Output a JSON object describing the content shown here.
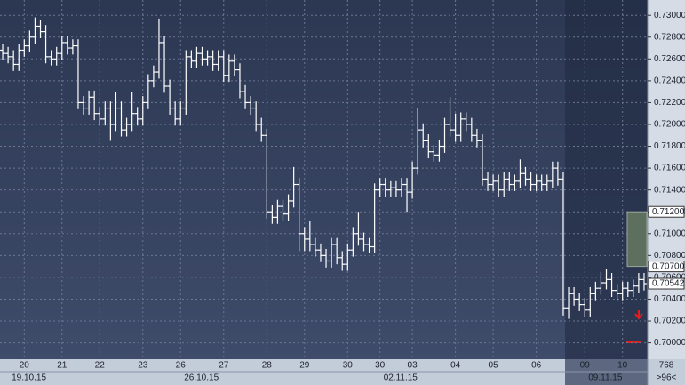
{
  "chart_data": {
    "type": "ohlc",
    "categories": [
      null,
      null,
      null,
      null,
      "20",
      null,
      null,
      null,
      null,
      null,
      null,
      "21",
      null,
      null,
      null,
      null,
      null,
      null,
      "22",
      null,
      null,
      null,
      null,
      null,
      null,
      null,
      "23",
      null,
      null,
      null,
      null,
      null,
      null,
      "26",
      null,
      null,
      null,
      null,
      null,
      null,
      null,
      "27",
      null,
      null,
      null,
      null,
      null,
      null,
      null,
      "28",
      null,
      null,
      null,
      null,
      null,
      null,
      "29",
      null,
      null,
      null,
      null,
      null,
      null,
      null,
      "30",
      null,
      null,
      null,
      null,
      null,
      "30",
      null,
      null,
      null,
      null,
      null,
      "03",
      null,
      null,
      null,
      null,
      null,
      null,
      null,
      "04",
      null,
      null,
      null,
      null,
      null,
      null,
      "05",
      null,
      null,
      null,
      null,
      null,
      null,
      null,
      "06",
      null,
      null,
      null,
      null,
      null,
      null,
      null,
      null,
      "09",
      null,
      null,
      null,
      null,
      null,
      null,
      "10",
      null,
      null,
      null,
      null
    ],
    "dates": [
      null,
      "19.10.15",
      null,
      null,
      null,
      null,
      null,
      null,
      null,
      null,
      null,
      null,
      null,
      null,
      null,
      null,
      null,
      null,
      null,
      null,
      null,
      null,
      null,
      null,
      null,
      null,
      null,
      null,
      null,
      null,
      null,
      null,
      null,
      "26.10.15",
      null,
      null,
      null,
      null,
      null,
      null,
      null,
      null,
      null,
      null,
      null,
      null,
      null,
      null,
      null,
      null,
      null,
      null,
      null,
      null,
      null,
      null,
      null,
      null,
      null,
      null,
      null,
      null,
      null,
      null,
      null,
      null,
      null,
      null,
      null,
      null,
      "02.11.15",
      null,
      null,
      null,
      null,
      null,
      null,
      null,
      null,
      null,
      null,
      null,
      null,
      null,
      null,
      null,
      null,
      null,
      null,
      null,
      null,
      null,
      null,
      null,
      null,
      null,
      null,
      null,
      null,
      null,
      null,
      null,
      null,
      null,
      null,
      null,
      null,
      null,
      "09.11.15",
      null,
      null,
      null,
      null,
      null,
      null,
      null,
      null,
      null,
      null,
      null
    ],
    "open": [
      0.7268,
      0.7265,
      0.7262,
      0.7255,
      0.7268,
      0.7272,
      0.728,
      0.729,
      0.7285,
      0.7262,
      0.726,
      0.7265,
      0.7275,
      0.727,
      0.7272,
      0.722,
      0.7215,
      0.7225,
      0.721,
      0.7205,
      0.7215,
      0.72,
      0.7215,
      0.7195,
      0.72,
      0.721,
      0.7205,
      0.722,
      0.724,
      0.7248,
      0.7275,
      0.7235,
      0.7215,
      0.7205,
      0.7215,
      0.7262,
      0.7258,
      0.7265,
      0.726,
      0.7262,
      0.7255,
      0.7262,
      0.7245,
      0.7258,
      0.725,
      0.723,
      0.722,
      0.7215,
      0.72,
      0.719,
      0.712,
      0.7115,
      0.7125,
      0.7118,
      0.713,
      0.7145,
      0.71,
      0.7095,
      0.709,
      0.7085,
      0.708,
      0.7075,
      0.709,
      0.7078,
      0.7072,
      0.7085,
      0.71,
      0.7095,
      0.709,
      0.7088,
      0.714,
      0.7145,
      0.714,
      0.7142,
      0.714,
      0.7145,
      0.7138,
      0.716,
      0.7195,
      0.7185,
      0.7175,
      0.7172,
      0.718,
      0.72,
      0.7195,
      0.719,
      0.7205,
      0.72,
      0.719,
      0.7185,
      0.715,
      0.7145,
      0.7148,
      0.714,
      0.715,
      0.7145,
      0.7148,
      0.7155,
      0.715,
      0.7145,
      0.7148,
      0.7145,
      0.7148,
      0.716,
      0.715,
      0.7032,
      0.7045,
      0.704,
      0.7035,
      0.703,
      0.7045,
      0.705,
      0.7055,
      0.7058,
      0.7048,
      0.7045,
      0.705,
      0.7048,
      0.7052,
      0.7058
    ],
    "high": [
      0.7274,
      0.7271,
      0.7268,
      0.7274,
      0.7278,
      0.7286,
      0.7298,
      0.7296,
      0.7291,
      0.7268,
      0.7271,
      0.7281,
      0.7281,
      0.7278,
      0.7278,
      0.7226,
      0.7231,
      0.7231,
      0.7216,
      0.7221,
      0.7221,
      0.723,
      0.7221,
      0.7206,
      0.723,
      0.7216,
      0.7226,
      0.7246,
      0.7254,
      0.7297,
      0.7281,
      0.7241,
      0.7221,
      0.7221,
      0.7268,
      0.7268,
      0.7271,
      0.7271,
      0.7268,
      0.7268,
      0.7268,
      0.7268,
      0.7264,
      0.7264,
      0.7256,
      0.7236,
      0.7226,
      0.7221,
      0.7206,
      0.7196,
      0.7126,
      0.7131,
      0.7131,
      0.7136,
      0.7161,
      0.7151,
      0.7106,
      0.7112,
      0.7096,
      0.7091,
      0.7086,
      0.7096,
      0.7096,
      0.7084,
      0.7091,
      0.7106,
      0.712,
      0.7101,
      0.7096,
      0.7146,
      0.7151,
      0.7151,
      0.7148,
      0.7148,
      0.7151,
      0.7151,
      0.7166,
      0.7215,
      0.7201,
      0.7191,
      0.7181,
      0.7186,
      0.7206,
      0.7225,
      0.721,
      0.7211,
      0.7211,
      0.7206,
      0.7196,
      0.7191,
      0.7156,
      0.7154,
      0.7154,
      0.7156,
      0.7156,
      0.7154,
      0.7168,
      0.7161,
      0.7156,
      0.7154,
      0.7154,
      0.7154,
      0.7166,
      0.7166,
      0.7156,
      0.7051,
      0.7051,
      0.7046,
      0.7041,
      0.7051,
      0.7056,
      0.7065,
      0.7068,
      0.7064,
      0.7054,
      0.7056,
      0.7056,
      0.7058,
      0.7064,
      0.7064
    ],
    "low": [
      0.7259,
      0.7256,
      0.7249,
      0.7249,
      0.7262,
      0.7266,
      0.7274,
      0.7279,
      0.7256,
      0.7254,
      0.7254,
      0.7259,
      0.7264,
      0.7264,
      0.7214,
      0.7209,
      0.7209,
      0.7204,
      0.7199,
      0.7199,
      0.7185,
      0.7194,
      0.7189,
      0.7189,
      0.7194,
      0.7199,
      0.7199,
      0.7214,
      0.7234,
      0.7242,
      0.7229,
      0.7209,
      0.7199,
      0.7199,
      0.7209,
      0.7252,
      0.7252,
      0.7254,
      0.7254,
      0.7249,
      0.7249,
      0.7239,
      0.7239,
      0.7244,
      0.7224,
      0.7214,
      0.7209,
      0.7194,
      0.7184,
      0.7114,
      0.7109,
      0.7109,
      0.7112,
      0.7112,
      0.7124,
      0.7084,
      0.7084,
      0.7084,
      0.7079,
      0.7074,
      0.7069,
      0.7069,
      0.7072,
      0.7066,
      0.7066,
      0.7079,
      0.7089,
      0.7084,
      0.7082,
      0.7082,
      0.7134,
      0.7134,
      0.7134,
      0.7134,
      0.7134,
      0.712,
      0.7132,
      0.7154,
      0.7179,
      0.7169,
      0.7166,
      0.7166,
      0.7174,
      0.7189,
      0.7184,
      0.7184,
      0.7194,
      0.7184,
      0.7179,
      0.7144,
      0.7139,
      0.7139,
      0.7134,
      0.7134,
      0.7139,
      0.7139,
      0.7142,
      0.7144,
      0.7139,
      0.7139,
      0.7139,
      0.7139,
      0.7142,
      0.7144,
      0.7025,
      0.7022,
      0.7034,
      0.7029,
      0.7024,
      0.7024,
      0.7039,
      0.7044,
      0.7049,
      0.7042,
      0.7039,
      0.7039,
      0.7042,
      0.7042,
      0.7046,
      0.7048
    ],
    "close": [
      0.7265,
      0.7262,
      0.7255,
      0.7268,
      0.7272,
      0.728,
      0.729,
      0.7285,
      0.7262,
      0.726,
      0.7265,
      0.7275,
      0.727,
      0.7272,
      0.722,
      0.7215,
      0.7225,
      0.721,
      0.7205,
      0.7215,
      0.72,
      0.7215,
      0.7195,
      0.72,
      0.721,
      0.7205,
      0.722,
      0.724,
      0.7248,
      0.7275,
      0.7235,
      0.7215,
      0.7205,
      0.7215,
      0.7262,
      0.7258,
      0.7265,
      0.726,
      0.7262,
      0.7255,
      0.7262,
      0.7245,
      0.7258,
      0.725,
      0.723,
      0.722,
      0.7215,
      0.72,
      0.719,
      0.712,
      0.7115,
      0.7125,
      0.7118,
      0.713,
      0.7145,
      0.71,
      0.7095,
      0.709,
      0.7085,
      0.708,
      0.7075,
      0.709,
      0.7078,
      0.7072,
      0.7085,
      0.71,
      0.7095,
      0.709,
      0.7088,
      0.714,
      0.7145,
      0.714,
      0.7142,
      0.714,
      0.7145,
      0.7138,
      0.716,
      0.7195,
      0.7185,
      0.7175,
      0.7172,
      0.718,
      0.72,
      0.7195,
      0.719,
      0.7205,
      0.72,
      0.719,
      0.7185,
      0.715,
      0.7145,
      0.7148,
      0.714,
      0.715,
      0.7145,
      0.7148,
      0.7155,
      0.715,
      0.7145,
      0.7148,
      0.7145,
      0.7148,
      0.716,
      0.715,
      0.7032,
      0.7045,
      0.704,
      0.7035,
      0.703,
      0.7045,
      0.705,
      0.7055,
      0.7058,
      0.7048,
      0.7045,
      0.705,
      0.7048,
      0.7052,
      0.7058,
      0.70542
    ],
    "color": "#ffffff",
    "ylim": [
      0.6985,
      0.7314
    ],
    "yticks": [
      {
        "value": 0.7,
        "label": "0.70000"
      },
      {
        "value": 0.702,
        "label": "0.70200"
      },
      {
        "value": 0.704,
        "label": "0.70400"
      },
      {
        "value": 0.706,
        "label": "0.70600"
      },
      {
        "value": 0.708,
        "label": "0.70800"
      },
      {
        "value": 0.71,
        "label": "0.71000"
      },
      {
        "value": 0.712,
        "label": "0.71200"
      },
      {
        "value": 0.714,
        "label": "0.71400"
      },
      {
        "value": 0.716,
        "label": "0.71600"
      },
      {
        "value": 0.718,
        "label": "0.71800"
      },
      {
        "value": 0.72,
        "label": "0.72000"
      },
      {
        "value": 0.722,
        "label": "0.72200"
      },
      {
        "value": 0.724,
        "label": "0.72400"
      },
      {
        "value": 0.726,
        "label": "0.72600"
      },
      {
        "value": 0.728,
        "label": "0.72800"
      },
      {
        "value": 0.73,
        "label": "0.73000"
      }
    ],
    "markers": [
      {
        "value": 0.712,
        "label": "0.71200"
      },
      {
        "value": 0.707,
        "label": "0.70700"
      }
    ],
    "scale_info": [
      "768",
      ">96<"
    ],
    "grid": true
  }
}
